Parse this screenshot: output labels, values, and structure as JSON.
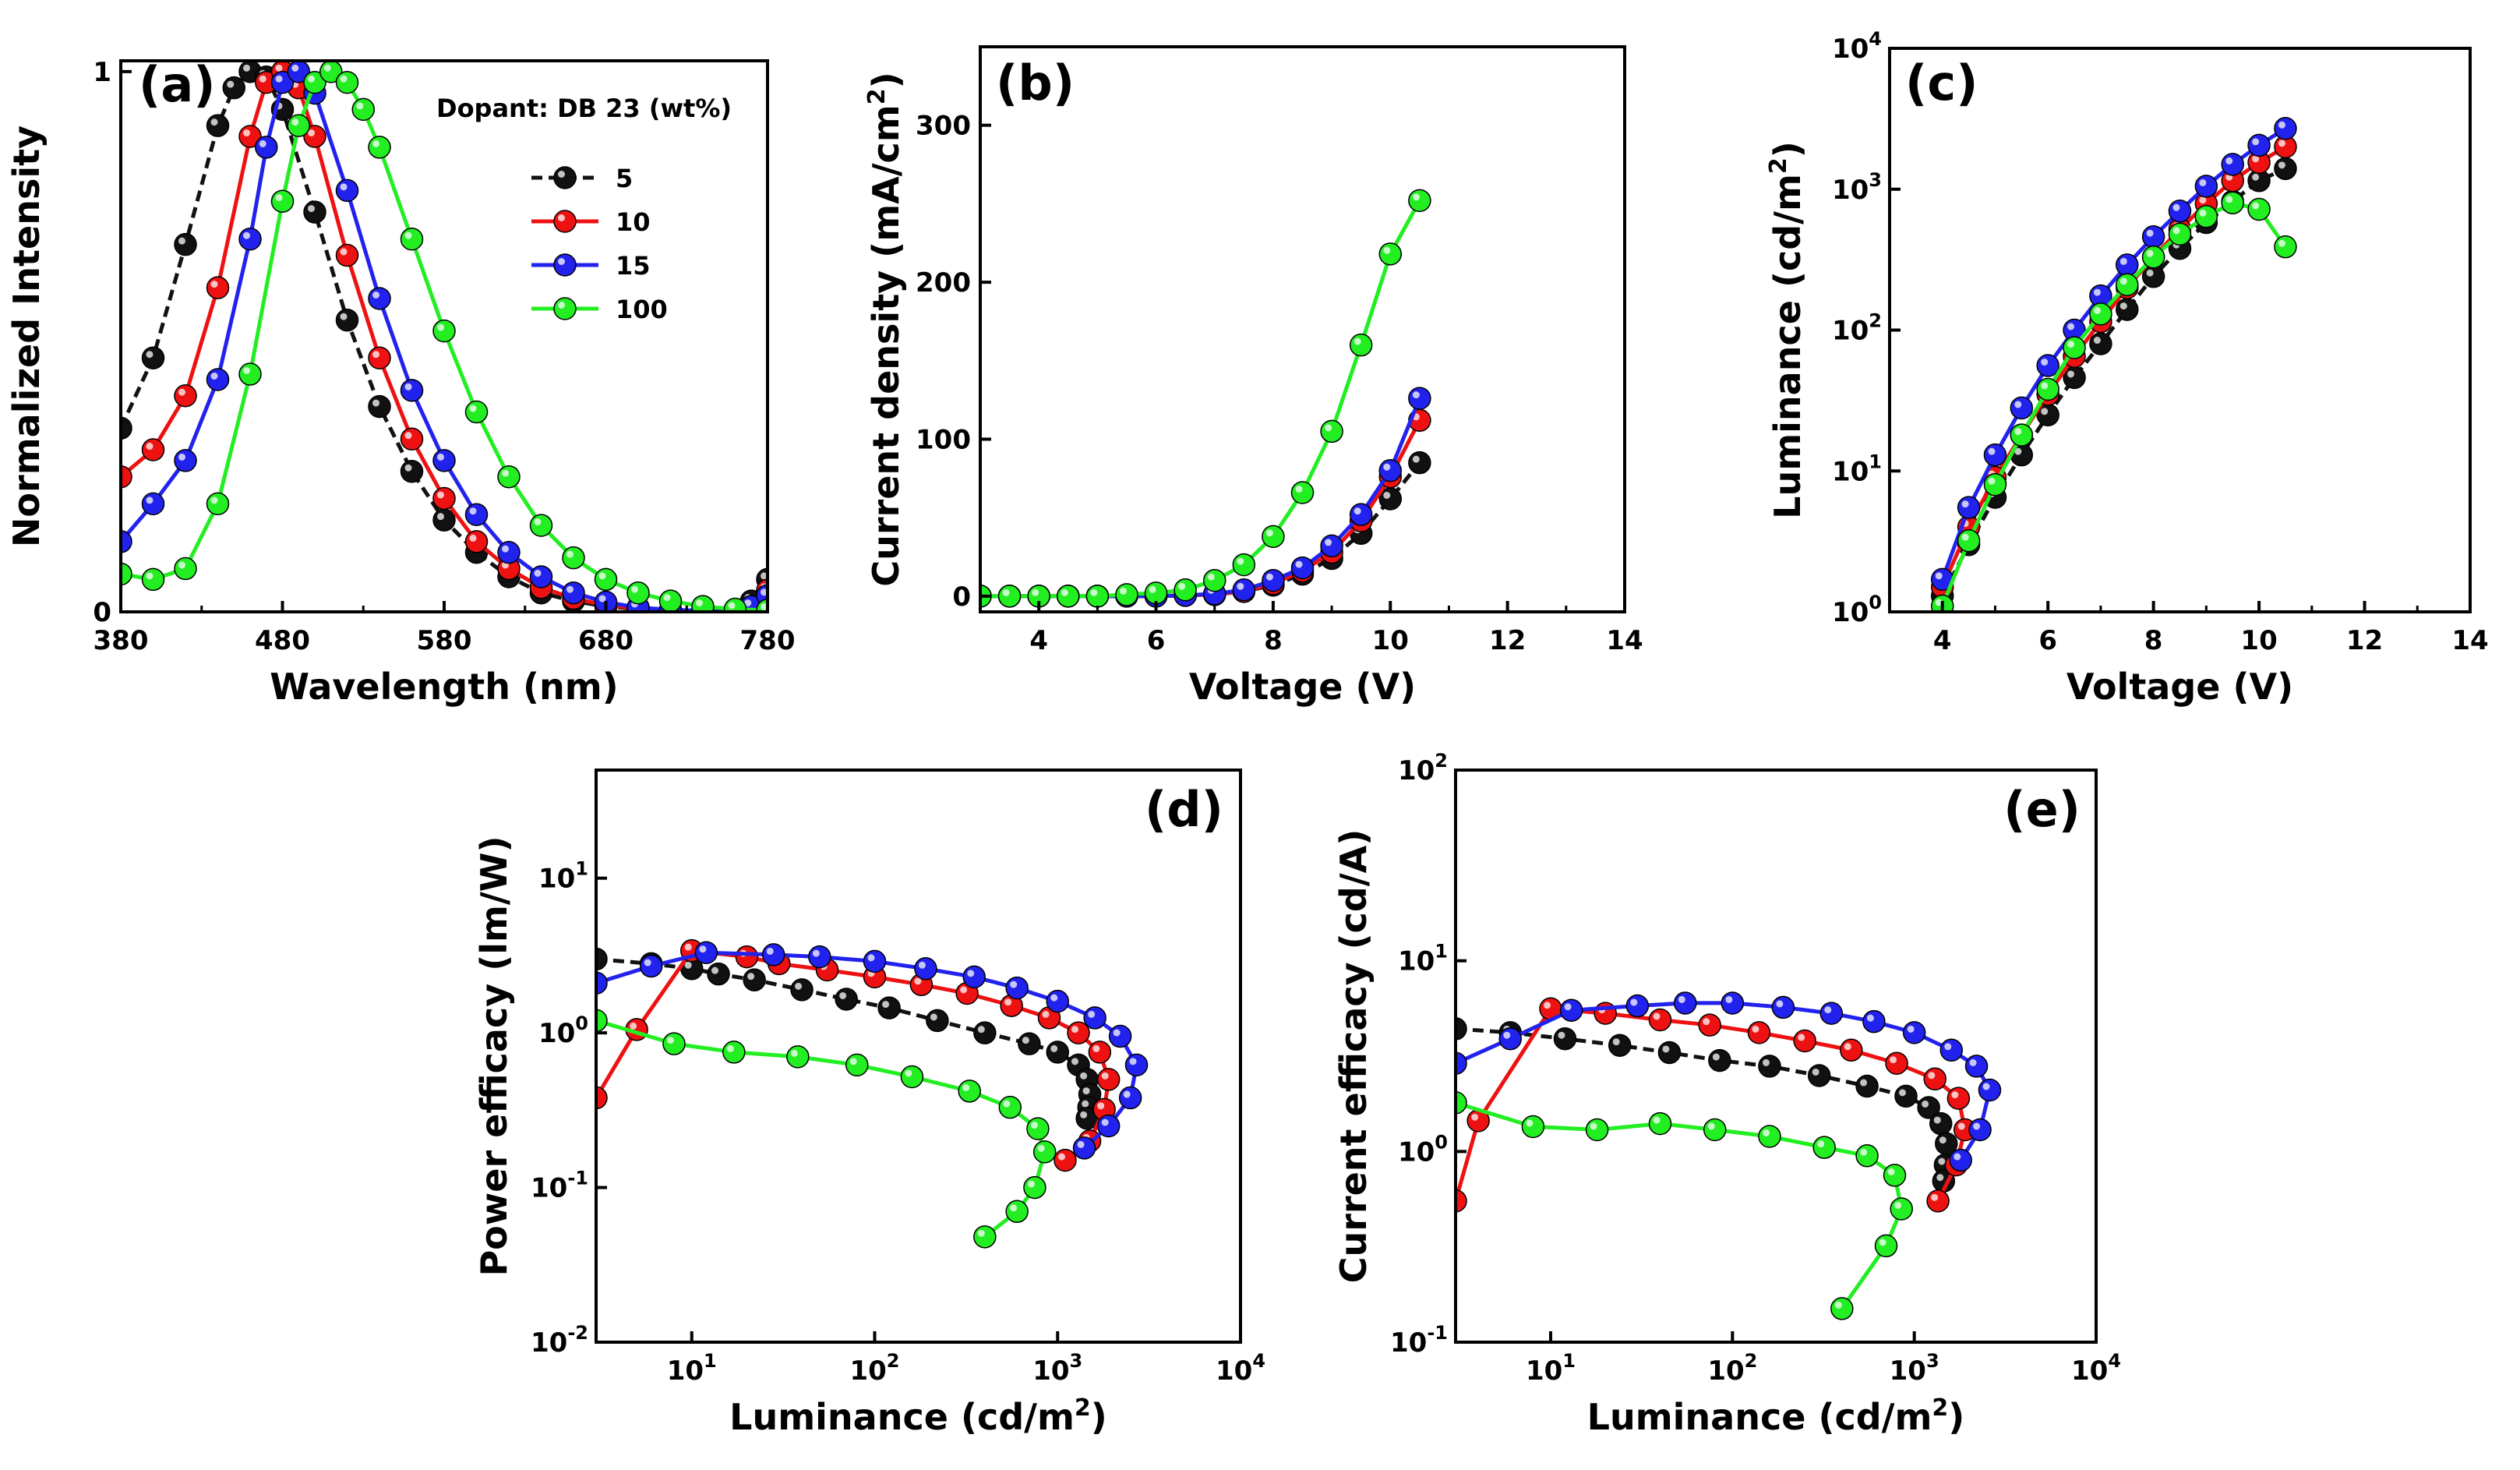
{
  "colors": {
    "s5": "#111111",
    "s10": "#ee1111",
    "s15": "#2222ee",
    "s100": "#22ee22"
  },
  "legend": {
    "title": "Dopant: DB 23 (wt%)",
    "entries": [
      "5",
      "10",
      "15",
      "100"
    ]
  },
  "chart_data": [
    {
      "type": "line",
      "panel": "(a)",
      "xlabel": "Wavelength (nm)",
      "ylabel": "Normalized Intensity",
      "xlim": [
        380,
        780
      ],
      "ylim": [
        0,
        1.02
      ],
      "xticks": [
        "380",
        "480",
        "580",
        "680",
        "780"
      ],
      "yticks": [
        {
          "v": 0,
          "label": "0"
        },
        {
          "v": 1,
          "label": "1"
        }
      ],
      "series": [
        {
          "name": "5",
          "color": "#111111",
          "x": [
            380,
            400,
            420,
            440,
            450,
            460,
            470,
            480,
            500,
            520,
            540,
            560,
            580,
            600,
            620,
            640,
            660,
            680,
            700,
            720,
            740,
            760,
            770,
            780
          ],
          "y": [
            0.34,
            0.47,
            0.68,
            0.9,
            0.97,
            1.0,
            0.99,
            0.93,
            0.74,
            0.54,
            0.38,
            0.26,
            0.17,
            0.11,
            0.065,
            0.035,
            0.02,
            0.01,
            0.005,
            0.003,
            0.002,
            0.002,
            0.02,
            0.06
          ]
        },
        {
          "name": "10",
          "color": "#ee1111",
          "x": [
            380,
            400,
            420,
            440,
            460,
            470,
            480,
            490,
            500,
            520,
            540,
            560,
            580,
            600,
            620,
            640,
            660,
            680,
            700,
            720,
            740,
            760,
            770,
            780
          ],
          "y": [
            0.25,
            0.3,
            0.4,
            0.6,
            0.88,
            0.98,
            1.0,
            0.97,
            0.88,
            0.66,
            0.47,
            0.32,
            0.21,
            0.13,
            0.08,
            0.045,
            0.025,
            0.012,
            0.006,
            0.003,
            0.002,
            0.002,
            0.01,
            0.04
          ]
        },
        {
          "name": "15",
          "color": "#2222ee",
          "x": [
            380,
            400,
            420,
            440,
            460,
            470,
            480,
            490,
            500,
            520,
            540,
            560,
            580,
            600,
            620,
            640,
            660,
            680,
            700,
            720,
            740,
            760,
            770,
            780
          ],
          "y": [
            0.13,
            0.2,
            0.28,
            0.43,
            0.69,
            0.86,
            0.98,
            1.0,
            0.96,
            0.78,
            0.58,
            0.41,
            0.28,
            0.18,
            0.11,
            0.065,
            0.035,
            0.018,
            0.008,
            0.004,
            0.002,
            0.002,
            0.01,
            0.03
          ]
        },
        {
          "name": "100",
          "color": "#22ee22",
          "x": [
            380,
            400,
            420,
            440,
            460,
            480,
            490,
            500,
            510,
            520,
            530,
            540,
            560,
            580,
            600,
            620,
            640,
            660,
            680,
            700,
            720,
            740,
            760,
            780
          ],
          "y": [
            0.07,
            0.06,
            0.08,
            0.2,
            0.44,
            0.76,
            0.9,
            0.98,
            1.0,
            0.98,
            0.93,
            0.86,
            0.69,
            0.52,
            0.37,
            0.25,
            0.16,
            0.1,
            0.06,
            0.035,
            0.02,
            0.01,
            0.005,
            0.003
          ]
        }
      ]
    },
    {
      "type": "line",
      "panel": "(b)",
      "xlabel": "Voltage (V)",
      "ylabel": "Current density (mA/cm²)",
      "xlim": [
        3,
        14
      ],
      "ylim": [
        -10,
        350
      ],
      "xticks": [
        {
          "v": 4,
          "label": "4"
        },
        {
          "v": 6,
          "label": "6"
        },
        {
          "v": 8,
          "label": "8"
        },
        {
          "v": 10,
          "label": "10"
        },
        {
          "v": 12,
          "label": "12"
        },
        {
          "v": 14,
          "label": "14"
        }
      ],
      "yticks": [
        {
          "v": 0,
          "label": "0"
        },
        {
          "v": 100,
          "label": "100"
        },
        {
          "v": 200,
          "label": "200"
        },
        {
          "v": 300,
          "label": "300"
        }
      ],
      "series": [
        {
          "name": "5",
          "color": "#111111",
          "x": [
            3,
            3.5,
            4,
            4.5,
            5,
            5.5,
            6,
            6.5,
            7,
            7.5,
            8,
            8.5,
            9,
            9.5,
            10,
            10.5
          ],
          "y": [
            0,
            0,
            0,
            0,
            0,
            0,
            0,
            0.5,
            1,
            3,
            7,
            14,
            24,
            40,
            62,
            85
          ]
        },
        {
          "name": "10",
          "color": "#ee1111",
          "x": [
            3,
            3.5,
            4,
            4.5,
            5,
            5.5,
            6,
            6.5,
            7,
            7.5,
            8,
            8.5,
            9,
            9.5,
            10,
            10.5
          ],
          "y": [
            0,
            0,
            0,
            0,
            0,
            0,
            0,
            0.5,
            1,
            3,
            8,
            16,
            28,
            48,
            76,
            112
          ]
        },
        {
          "name": "15",
          "color": "#2222ee",
          "x": [
            3,
            3.5,
            4,
            4.5,
            5,
            5.5,
            6,
            6.5,
            7,
            7.5,
            8,
            8.5,
            9,
            9.5,
            10,
            10.5
          ],
          "y": [
            0,
            0,
            0,
            0,
            0,
            0,
            0,
            0.5,
            1.5,
            4,
            10,
            18,
            32,
            52,
            80,
            126
          ]
        },
        {
          "name": "100",
          "color": "#22ee22",
          "x": [
            3,
            3.5,
            4,
            4.5,
            5,
            5.5,
            6,
            6.5,
            7,
            7.5,
            8,
            8.5,
            9,
            9.5,
            10,
            10.5
          ],
          "y": [
            0,
            0,
            0,
            0,
            0,
            1,
            2,
            4,
            10,
            20,
            38,
            66,
            105,
            160,
            218,
            252
          ]
        }
      ]
    },
    {
      "type": "line",
      "panel": "(c)",
      "xlabel": "Voltage (V)",
      "ylabel": "Luminance (cd/m²)",
      "xlim": [
        3,
        14
      ],
      "ylim": [
        1,
        10000
      ],
      "yscale": "log",
      "xticks": [
        {
          "v": 4,
          "label": "4"
        },
        {
          "v": 6,
          "label": "6"
        },
        {
          "v": 8,
          "label": "8"
        },
        {
          "v": 10,
          "label": "10"
        },
        {
          "v": 12,
          "label": "12"
        },
        {
          "v": 14,
          "label": "14"
        }
      ],
      "yticks": [
        {
          "v": 1,
          "label": "10",
          "exp": "0"
        },
        {
          "v": 10,
          "label": "10",
          "exp": "1"
        },
        {
          "v": 100,
          "label": "10",
          "exp": "2"
        },
        {
          "v": 1000,
          "label": "10",
          "exp": "3"
        },
        {
          "v": 10000,
          "label": "10",
          "exp": "4"
        }
      ],
      "series": [
        {
          "name": "5",
          "color": "#111111",
          "x": [
            4,
            4.5,
            5,
            5.5,
            6,
            6.5,
            7,
            7.5,
            8,
            8.5,
            9,
            9.5,
            10,
            10.5
          ],
          "y": [
            1.3,
            3,
            6.5,
            13,
            25,
            46,
            80,
            140,
            240,
            380,
            580,
            820,
            1150,
            1400
          ]
        },
        {
          "name": "10",
          "color": "#ee1111",
          "x": [
            4,
            4.5,
            5,
            5.5,
            6,
            6.5,
            7,
            7.5,
            8,
            8.5,
            9,
            9.5,
            10,
            10.5
          ],
          "y": [
            1.5,
            4,
            9,
            18,
            35,
            65,
            115,
            200,
            330,
            520,
            790,
            1150,
            1550,
            2000
          ]
        },
        {
          "name": "15",
          "color": "#2222ee",
          "x": [
            4,
            4.5,
            5,
            5.5,
            6,
            6.5,
            7,
            7.5,
            8,
            8.5,
            9,
            9.5,
            10,
            10.5
          ],
          "y": [
            1.7,
            5.5,
            13,
            28,
            56,
            100,
            175,
            290,
            460,
            700,
            1050,
            1500,
            2050,
            2700
          ]
        },
        {
          "name": "100",
          "color": "#22ee22",
          "x": [
            4,
            4.5,
            5,
            5.5,
            6,
            6.5,
            7,
            7.5,
            8,
            8.5,
            9,
            9.5,
            10,
            10.5
          ],
          "y": [
            1.1,
            3.2,
            8,
            18,
            38,
            75,
            130,
            210,
            330,
            480,
            640,
            800,
            720,
            390
          ]
        }
      ]
    },
    {
      "type": "line",
      "panel": "(d)",
      "xlabel": "Luminance (cd/m²)",
      "ylabel": "Power efficacy (lm/W)",
      "xlim": [
        3,
        10000
      ],
      "ylim": [
        0.01,
        50
      ],
      "xscale": "log",
      "yscale": "log",
      "xticks": [
        {
          "v": 10,
          "label": "10",
          "exp": "1"
        },
        {
          "v": 100,
          "label": "10",
          "exp": "2"
        },
        {
          "v": 1000,
          "label": "10",
          "exp": "3"
        },
        {
          "v": 10000,
          "label": "10",
          "exp": "4"
        }
      ],
      "yticks": [
        {
          "v": 0.01,
          "label": "10",
          "exp": "-2"
        },
        {
          "v": 0.1,
          "label": "10",
          "exp": "-1"
        },
        {
          "v": 1,
          "label": "10",
          "exp": "0"
        },
        {
          "v": 10,
          "label": "10",
          "exp": "1"
        }
      ],
      "series": [
        {
          "name": "5",
          "color": "#111111",
          "x": [
            3,
            6,
            10,
            14,
            22,
            40,
            70,
            120,
            220,
            400,
            700,
            1000,
            1300,
            1450,
            1500,
            1480,
            1450
          ],
          "y": [
            3.0,
            2.8,
            2.6,
            2.4,
            2.2,
            1.9,
            1.65,
            1.45,
            1.2,
            1.0,
            0.85,
            0.75,
            0.62,
            0.5,
            0.4,
            0.33,
            0.28
          ]
        },
        {
          "name": "10",
          "color": "#ee1111",
          "x": [
            3,
            5,
            10,
            20,
            30,
            55,
            100,
            180,
            320,
            560,
            900,
            1300,
            1700,
            1900,
            1800,
            1500,
            1100
          ],
          "y": [
            0.38,
            1.05,
            3.4,
            3.1,
            2.8,
            2.55,
            2.3,
            2.05,
            1.8,
            1.5,
            1.25,
            1.0,
            0.75,
            0.5,
            0.32,
            0.2,
            0.15
          ]
        },
        {
          "name": "15",
          "color": "#2222ee",
          "x": [
            3,
            6,
            12,
            28,
            50,
            100,
            190,
            350,
            600,
            1000,
            1600,
            2200,
            2700,
            2500,
            1900,
            1400
          ],
          "y": [
            2.1,
            2.7,
            3.3,
            3.2,
            3.1,
            2.9,
            2.6,
            2.3,
            1.95,
            1.6,
            1.25,
            0.95,
            0.62,
            0.38,
            0.25,
            0.18
          ]
        },
        {
          "name": "100",
          "color": "#22ee22",
          "x": [
            3,
            8,
            17,
            38,
            80,
            160,
            330,
            550,
            780,
            850,
            750,
            600,
            400
          ],
          "y": [
            1.2,
            0.85,
            0.75,
            0.7,
            0.62,
            0.52,
            0.42,
            0.33,
            0.24,
            0.17,
            0.1,
            0.07,
            0.048
          ]
        }
      ]
    },
    {
      "type": "line",
      "panel": "(e)",
      "xlabel": "Luminance (cd/m²)",
      "ylabel": "Current efficacy (cd/A)",
      "xlim": [
        3,
        10000
      ],
      "ylim": [
        0.1,
        100
      ],
      "xscale": "log",
      "yscale": "log",
      "xticks": [
        {
          "v": 10,
          "label": "10",
          "exp": "1"
        },
        {
          "v": 100,
          "label": "10",
          "exp": "2"
        },
        {
          "v": 1000,
          "label": "10",
          "exp": "3"
        },
        {
          "v": 10000,
          "label": "10",
          "exp": "4"
        }
      ],
      "yticks": [
        {
          "v": 0.1,
          "label": "10",
          "exp": "-1"
        },
        {
          "v": 1,
          "label": "10",
          "exp": "0"
        },
        {
          "v": 10,
          "label": "10",
          "exp": "1"
        },
        {
          "v": 100,
          "label": "10",
          "exp": "2"
        }
      ],
      "series": [
        {
          "name": "5",
          "color": "#111111",
          "x": [
            3,
            6,
            12,
            24,
            45,
            85,
            160,
            300,
            550,
            900,
            1200,
            1400,
            1500,
            1480,
            1450
          ],
          "y": [
            4.4,
            4.2,
            3.9,
            3.6,
            3.3,
            3.0,
            2.8,
            2.5,
            2.2,
            1.95,
            1.7,
            1.4,
            1.1,
            0.85,
            0.7
          ]
        },
        {
          "name": "10",
          "color": "#ee1111",
          "x": [
            3,
            4,
            10,
            20,
            40,
            75,
            140,
            250,
            450,
            800,
            1300,
            1750,
            1900,
            1700,
            1350
          ],
          "y": [
            0.55,
            1.45,
            5.6,
            5.3,
            4.9,
            4.6,
            4.2,
            3.8,
            3.4,
            2.9,
            2.4,
            1.9,
            1.3,
            0.85,
            0.55
          ]
        },
        {
          "name": "15",
          "color": "#2222ee",
          "x": [
            3,
            6,
            13,
            30,
            55,
            100,
            190,
            350,
            600,
            1000,
            1600,
            2200,
            2600,
            2300,
            1800
          ],
          "y": [
            2.9,
            3.9,
            5.5,
            5.8,
            6.0,
            6.0,
            5.7,
            5.3,
            4.8,
            4.2,
            3.4,
            2.8,
            2.1,
            1.3,
            0.9
          ]
        },
        {
          "name": "100",
          "color": "#22ee22",
          "x": [
            3,
            8,
            18,
            40,
            80,
            160,
            320,
            550,
            780,
            850,
            700,
            400
          ],
          "y": [
            1.8,
            1.35,
            1.3,
            1.4,
            1.3,
            1.2,
            1.05,
            0.95,
            0.75,
            0.5,
            0.32,
            0.15
          ]
        }
      ]
    }
  ]
}
